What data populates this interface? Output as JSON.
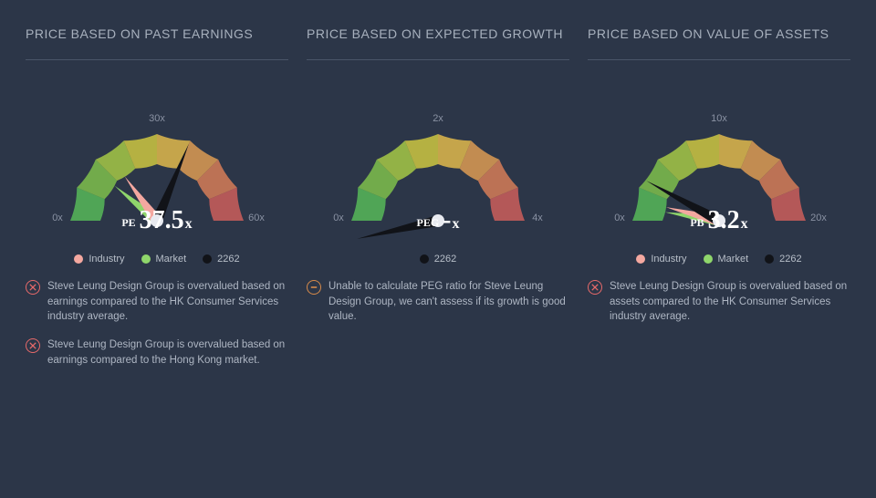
{
  "background_color": "#2c3648",
  "text_color": "#b8bfc9",
  "accent_text": "#ffffff",
  "divider_color": "#4a5568",
  "gauge": {
    "arc_colors": [
      "#57b859",
      "#7fc04c",
      "#a6c847",
      "#cec742",
      "#e0b94c",
      "#dd9b53",
      "#d67c58",
      "#cd5e5c"
    ],
    "needle_main": "#111318",
    "needle_industry": "#f4a8a0",
    "needle_market": "#8fd66b",
    "hub_color": "#e8eaf0",
    "tick_color": "#8a92a3"
  },
  "legend_colors": {
    "industry": "#f4a8a0",
    "market": "#8fd66b",
    "ticker": "#111318"
  },
  "icon_colors": {
    "bad": "#e86a6a",
    "neutral": "#d68a4a"
  },
  "panels": [
    {
      "title": "PRICE BASED ON PAST EARNINGS",
      "metric_label": "PE",
      "value_text": "37.5",
      "value_suffix": "x",
      "max": 60,
      "mid_label": "30x",
      "max_label": "60x",
      "main_ratio": 0.625,
      "industry_ratio": 0.3,
      "market_ratio": 0.22,
      "legend": [
        {
          "key": "industry",
          "label": "Industry"
        },
        {
          "key": "market",
          "label": "Market"
        },
        {
          "key": "ticker",
          "label": "2262"
        }
      ],
      "notes": [
        {
          "type": "bad",
          "text": "Steve Leung Design Group is overvalued based on earnings compared to the HK Consumer Services industry average."
        },
        {
          "type": "bad",
          "text": "Steve Leung Design Group is overvalued based on earnings compared to the Hong Kong market."
        }
      ]
    },
    {
      "title": "PRICE BASED ON EXPECTED GROWTH",
      "metric_label": "PEG",
      "value_text": "-",
      "value_suffix": "x",
      "max": 4,
      "mid_label": "2x",
      "max_label": "4x",
      "main_ratio": -0.07,
      "industry_ratio": null,
      "market_ratio": null,
      "legend": [
        {
          "key": "ticker",
          "label": "2262"
        }
      ],
      "notes": [
        {
          "type": "neutral",
          "text": "Unable to calculate PEG ratio for Steve Leung Design Group, we can't assess if its growth is good value."
        }
      ]
    },
    {
      "title": "PRICE BASED ON VALUE OF ASSETS",
      "metric_label": "PB",
      "value_text": "3.2",
      "value_suffix": "x",
      "max": 20,
      "mid_label": "10x",
      "max_label": "20x",
      "main_ratio": 0.16,
      "industry_ratio": 0.08,
      "market_ratio": 0.05,
      "legend": [
        {
          "key": "industry",
          "label": "Industry"
        },
        {
          "key": "market",
          "label": "Market"
        },
        {
          "key": "ticker",
          "label": "2262"
        }
      ],
      "notes": [
        {
          "type": "bad",
          "text": "Steve Leung Design Group is overvalued based on assets compared to the HK Consumer Services industry average."
        }
      ]
    }
  ]
}
